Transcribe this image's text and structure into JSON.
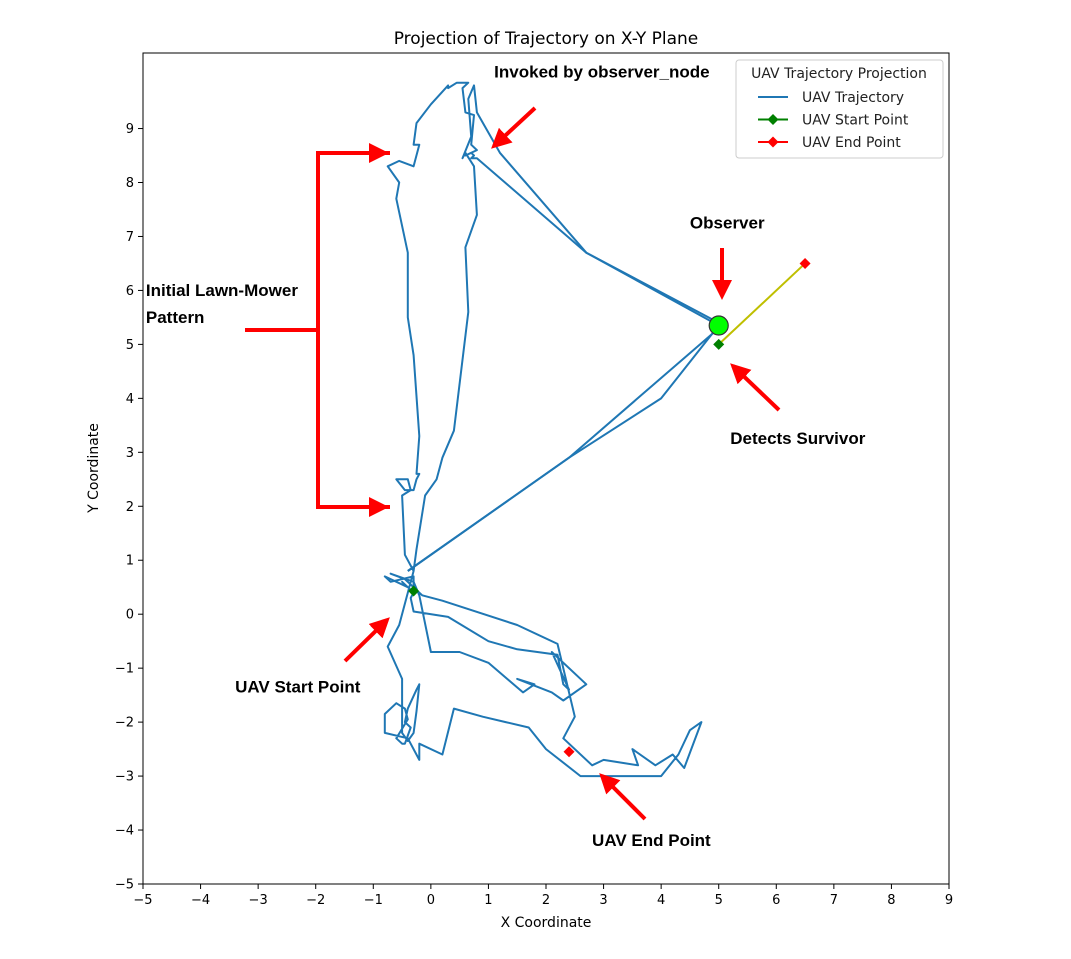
{
  "chart_data": {
    "type": "line",
    "title": "Projection of Trajectory on X-Y Plane",
    "xlabel": "X Coordinate",
    "ylabel": "Y Coordinate",
    "xlim": [
      -5,
      9
    ],
    "ylim": [
      -5,
      10.4
    ],
    "xticks": [
      -5,
      -4,
      -3,
      -2,
      -1,
      0,
      1,
      2,
      3,
      4,
      5,
      6,
      7,
      8,
      9
    ],
    "xtick_labels": [
      "−5",
      "−4",
      "−3",
      "−2",
      "−1",
      "0",
      "1",
      "2",
      "3",
      "4",
      "5",
      "6",
      "7",
      "8",
      "9"
    ],
    "yticks": [
      -5,
      -4,
      -3,
      -2,
      -1,
      0,
      1,
      2,
      3,
      4,
      5,
      6,
      7,
      8,
      9
    ],
    "ytick_labels": [
      "−5",
      "−4",
      "−3",
      "−2",
      "−1",
      "0",
      "1",
      "2",
      "3",
      "4",
      "5",
      "6",
      "7",
      "8",
      "9"
    ],
    "grid": false,
    "legend": {
      "title": "UAV Trajectory Projection",
      "location": "upper right",
      "entries": [
        {
          "label": "UAV Trajectory",
          "color": "#1f77b4",
          "kind": "line"
        },
        {
          "label": "UAV Start Point",
          "color": "#008000",
          "kind": "line-diamond"
        },
        {
          "label": "UAV End Point",
          "color": "#ff0000",
          "kind": "line-diamond"
        }
      ]
    },
    "series": [
      {
        "name": "UAV Trajectory",
        "color": "#1f77b4",
        "x": [
          -0.3,
          -0.3,
          -0.7,
          -0.8,
          -0.4,
          -0.5,
          -0.3,
          -0.35,
          -0.3,
          0.3,
          1.0,
          1.5,
          2.2,
          2.3,
          2.4,
          2.1,
          2.7,
          2.3,
          2.1,
          1.5,
          1.8,
          1.6,
          1.0,
          0.5,
          0.0,
          -0.2,
          -0.3,
          -0.7,
          -0.45,
          -0.15,
          0.2,
          1.5,
          2.2,
          2.5,
          2.3,
          2.8,
          3.0,
          3.6,
          3.5,
          3.9,
          4.2,
          4.4,
          4.7,
          4.5,
          4.3,
          4.0,
          3.3,
          2.6,
          2.0,
          1.7,
          1.3,
          0.9,
          0.4,
          0.2,
          -0.2,
          -0.2,
          -0.4,
          -0.8,
          -0.8,
          -0.6,
          -0.45,
          -0.4,
          -0.6,
          -0.5,
          -0.45,
          -0.35,
          -0.45,
          -0.4,
          -0.25,
          -0.2,
          -0.25,
          -0.3,
          -0.4,
          -0.5,
          -0.5,
          -0.75,
          -0.55,
          -0.3,
          -0.25,
          -0.1,
          0.1,
          0.2,
          0.4,
          0.65,
          0.6,
          0.8,
          0.75,
          0.6,
          0.55,
          0.7,
          0.65,
          0.75,
          0.8,
          1.2,
          2.7,
          5.0,
          4.0,
          2.4,
          -0.4
        ],
        "y": [
          0.5,
          0.7,
          0.6,
          0.7,
          0.5,
          0.6,
          0.4,
          0.3,
          0.05,
          -0.05,
          -0.5,
          -0.65,
          -0.75,
          -1.3,
          -1.4,
          -0.7,
          -1.3,
          -1.6,
          -1.45,
          -1.2,
          -1.3,
          -1.45,
          -0.9,
          -0.7,
          -0.7,
          0.35,
          0.6,
          0.75,
          0.65,
          0.35,
          0.25,
          -0.2,
          -0.55,
          -1.9,
          -2.3,
          -2.8,
          -2.7,
          -2.8,
          -2.5,
          -2.8,
          -2.6,
          -2.85,
          -2.0,
          -2.15,
          -2.6,
          -3.0,
          -3.0,
          -3.0,
          -2.5,
          -2.1,
          -2.0,
          -1.9,
          -1.75,
          -2.6,
          -2.4,
          -2.7,
          -2.3,
          -2.2,
          -1.85,
          -1.65,
          -1.75,
          -1.95,
          -2.3,
          -2.4,
          -2.4,
          -2.1,
          -2.0,
          -1.75,
          -1.4,
          -1.3,
          -1.8,
          -2.2,
          -2.35,
          -2.2,
          -1.2,
          -0.6,
          -0.2,
          0.8,
          1.2,
          2.2,
          2.5,
          2.9,
          3.4,
          5.6,
          6.8,
          7.4,
          8.3,
          8.55,
          8.45,
          8.85,
          9.55,
          9.8,
          9.3,
          8.55,
          6.7,
          5.35,
          4.0,
          2.9,
          0.8
        ],
        "anchor": "UAV Trajectory"
      },
      {
        "name": "Main path (trajectory)",
        "color": "#1f77b4",
        "x": [
          -0.3,
          -0.45,
          -0.5,
          -0.35,
          -0.4,
          -0.6,
          -0.45,
          -0.3,
          -0.25,
          -0.2,
          -0.25,
          -0.2,
          -0.3,
          -0.4,
          -0.4,
          -0.6,
          -0.55,
          -0.75,
          -0.55,
          -0.3,
          -0.2,
          -0.3,
          -0.25,
          0.0,
          0.3,
          0.3,
          0.45,
          0.65,
          0.55,
          0.6,
          0.75,
          0.7,
          0.8,
          0.6,
          0.7,
          0.75,
          0.7,
          0.7,
          0.8,
          2.7,
          5.0,
          5.0,
          2.4,
          -0.4
        ],
        "y": [
          0.8,
          1.1,
          2.2,
          2.3,
          2.5,
          2.5,
          2.3,
          2.3,
          2.5,
          2.6,
          2.6,
          3.3,
          4.8,
          5.5,
          6.7,
          7.7,
          8.0,
          8.3,
          8.4,
          8.3,
          8.7,
          8.7,
          9.1,
          9.45,
          9.8,
          9.75,
          9.85,
          9.85,
          9.75,
          9.3,
          9.25,
          8.7,
          8.6,
          8.5,
          8.55,
          8.5,
          8.45,
          8.45,
          8.45,
          6.7,
          5.4,
          5.3,
          2.9,
          0.8
        ],
        "anchor": "main"
      }
    ],
    "markers": [
      {
        "name": "UAV Start Point",
        "color": "#008000",
        "shape": "diamond",
        "x": -0.3,
        "y": 0.43
      },
      {
        "name": "UAV End Point",
        "color": "#ff0000",
        "shape": "diamond",
        "x": 2.4,
        "y": -2.55
      },
      {
        "name": "UAV Start Point (second)",
        "color": "#008000",
        "shape": "diamond",
        "x": 5.0,
        "y": 5.0
      },
      {
        "name": "UAV End Point (second)",
        "color": "#ff0000",
        "shape": "diamond",
        "x": 6.5,
        "y": 6.5
      },
      {
        "name": "Observer",
        "color": "#00ff00",
        "shape": "circle",
        "x": 5.0,
        "y": 5.35
      }
    ],
    "survivor_path": {
      "color": "#bfbf00",
      "x": [
        5.0,
        6.5
      ],
      "y": [
        5.0,
        6.5
      ]
    },
    "annotations": [
      {
        "id": "observer",
        "text": "Observer",
        "x": 4.5,
        "y": 7.15
      },
      {
        "id": "invoked",
        "text": "Invoked by observer_node",
        "x": 1.1,
        "y": 9.95
      },
      {
        "id": "lawn-1",
        "text": "Initial Lawn-Mower",
        "x": -4.95,
        "y": 5.9
      },
      {
        "id": "lawn-2",
        "text": "Pattern",
        "x": -4.95,
        "y": 5.4
      },
      {
        "id": "survivor",
        "text": "Detects Survivor",
        "x": 5.2,
        "y": 3.15
      },
      {
        "id": "start",
        "text": "UAV Start Point",
        "x": -3.4,
        "y": -1.45
      },
      {
        "id": "end",
        "text": "UAV End Point",
        "x": 2.8,
        "y": -4.3
      }
    ]
  }
}
